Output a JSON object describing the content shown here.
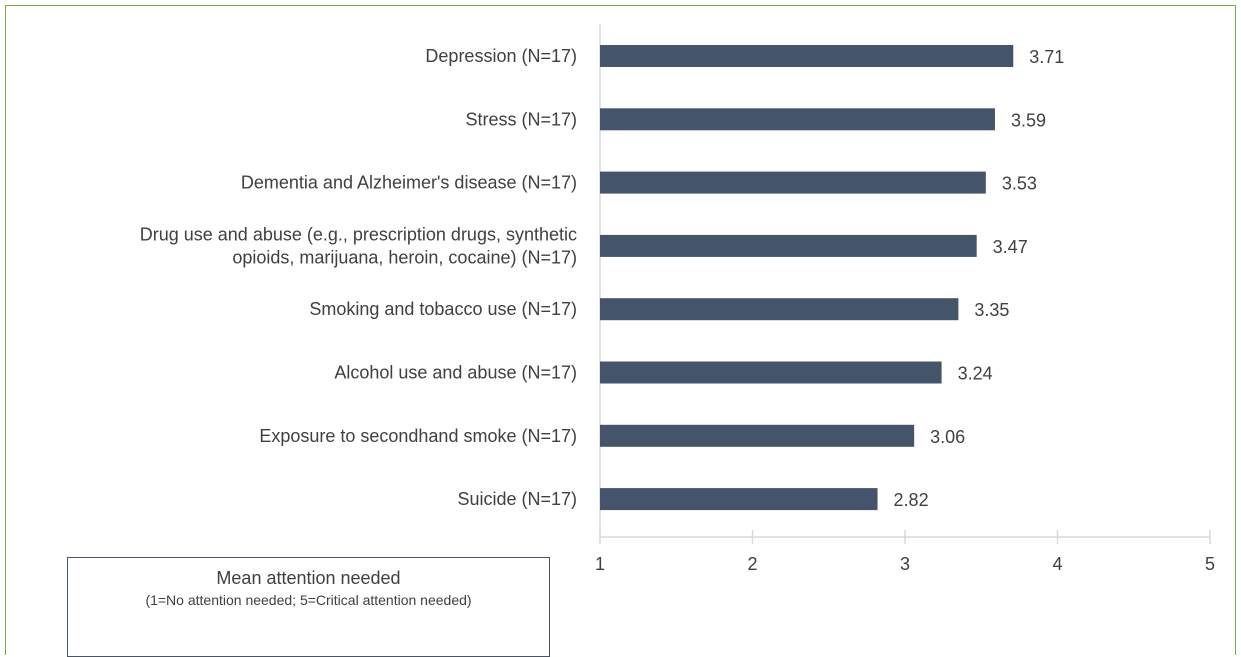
{
  "chart_data": {
    "type": "bar",
    "orientation": "horizontal",
    "categories": [
      "Depression (N=17)",
      "Stress (N=17)",
      "Dementia and Alzheimer's disease (N=17)",
      "Drug use and abuse (e.g., prescription drugs, synthetic opioids, marijuana, heroin, cocaine) (N=17)",
      "Smoking and tobacco use (N=17)",
      "Alcohol use and abuse (N=17)",
      "Exposure to secondhand smoke (N=17)",
      "Suicide (N=17)"
    ],
    "category_lines": [
      [
        "Depression (N=17)"
      ],
      [
        "Stress (N=17)"
      ],
      [
        "Dementia and Alzheimer's disease (N=17)"
      ],
      [
        "Drug use and abuse (e.g., prescription drugs, synthetic",
        "opioids, marijuana, heroin, cocaine) (N=17)"
      ],
      [
        "Smoking and tobacco use (N=17)"
      ],
      [
        "Alcohol use and abuse (N=17)"
      ],
      [
        "Exposure to secondhand smoke (N=17)"
      ],
      [
        "Suicide (N=17)"
      ]
    ],
    "values": [
      3.71,
      3.59,
      3.53,
      3.47,
      3.35,
      3.24,
      3.06,
      2.82
    ],
    "data_labels": [
      "3.71",
      "3.59",
      "3.53",
      "3.47",
      "3.35",
      "3.24",
      "3.06",
      "2.82"
    ],
    "xlim": [
      1,
      5
    ],
    "xticks": [
      "1",
      "2",
      "3",
      "4",
      "5"
    ],
    "grid": false,
    "bar_color": "#44546a",
    "axis_color": "#d9d9d9",
    "border_color": "#70ad47"
  },
  "legend": {
    "title": "Mean attention needed",
    "subtitle": "(1=No attention needed; 5=Critical attention needed)"
  }
}
